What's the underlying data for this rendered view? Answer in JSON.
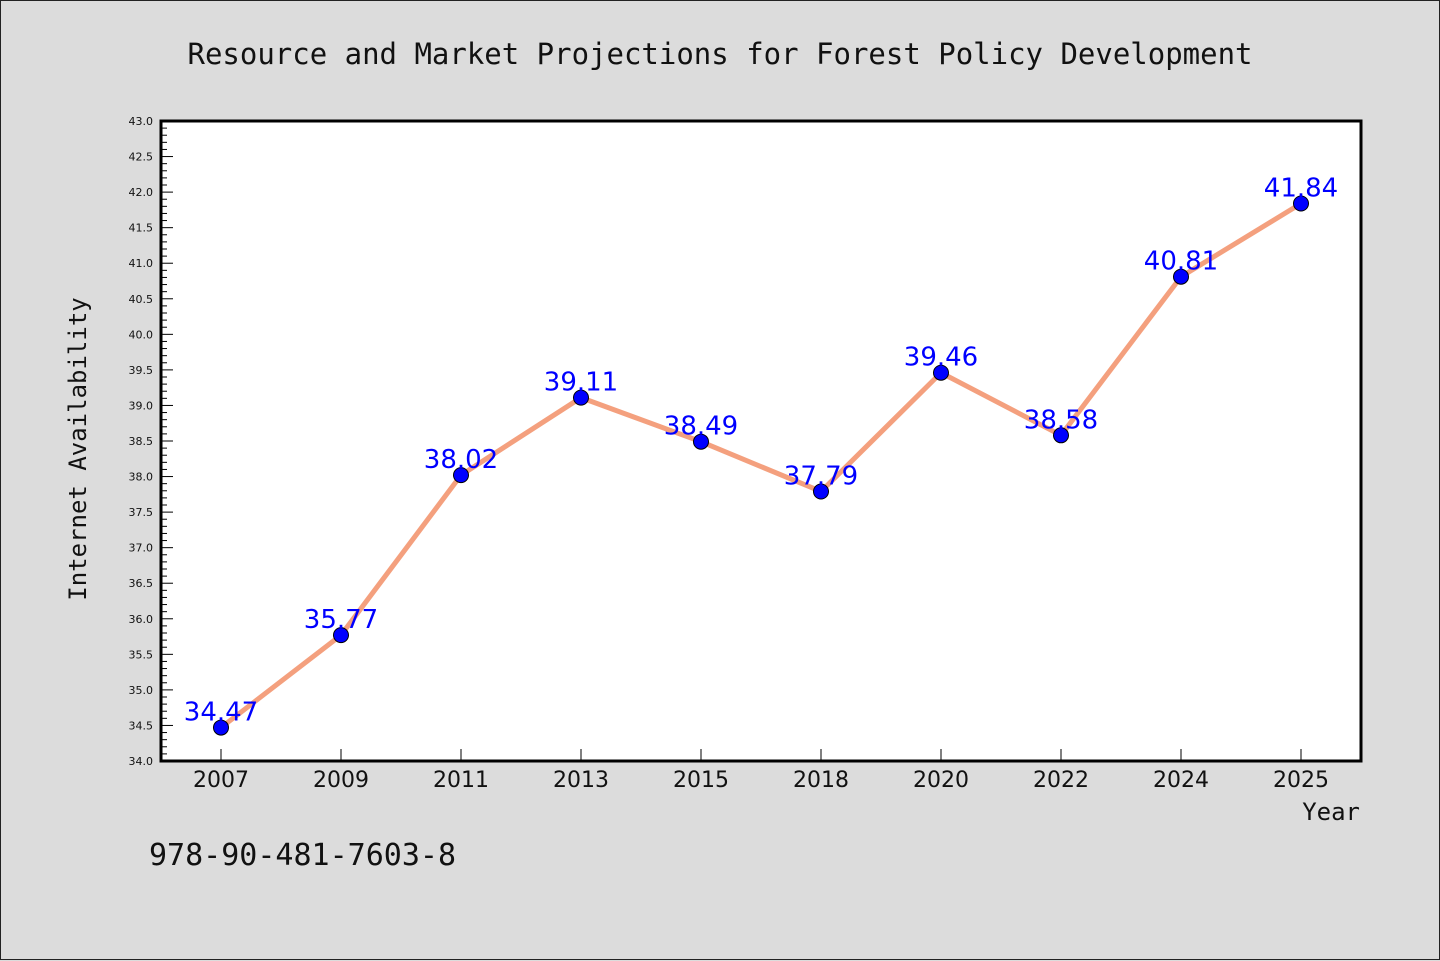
{
  "chart_data": {
    "type": "line",
    "title": "Resource and Market Projections for Forest Policy Development",
    "xlabel": "Year",
    "ylabel": "Internet Availability",
    "categories": [
      "2007",
      "2009",
      "2011",
      "2013",
      "2015",
      "2018",
      "2020",
      "2022",
      "2024",
      "2025"
    ],
    "series": [
      {
        "values": [
          34.47,
          35.77,
          38.02,
          39.11,
          38.49,
          37.79,
          39.46,
          38.58,
          40.81,
          41.84
        ],
        "data_labels": [
          "34.47",
          "35.77",
          "38.02",
          "39.11",
          "38.49",
          "37.79",
          "39.46",
          "38.58",
          "40.81",
          "41.84"
        ],
        "line_color": "#f4a07e",
        "marker_color": "#0000ff"
      }
    ],
    "ylim": [
      34.0,
      43.0
    ],
    "yticks": [
      "34.0",
      "34.5",
      "35.0",
      "35.5",
      "36.0",
      "36.5",
      "37.0",
      "37.5",
      "38.0",
      "38.5",
      "39.0",
      "39.5",
      "40.0",
      "40.5",
      "41.0",
      "41.5",
      "42.0",
      "42.5",
      "43.0"
    ],
    "grid": false,
    "legend": "none"
  },
  "footnote": "978-90-481-7603-8",
  "colors": {
    "background": "#dcdcdc",
    "plot_background": "#ffffff",
    "line": "#f4a07e",
    "marker": "#0000ff",
    "data_label": "#0000ff"
  }
}
